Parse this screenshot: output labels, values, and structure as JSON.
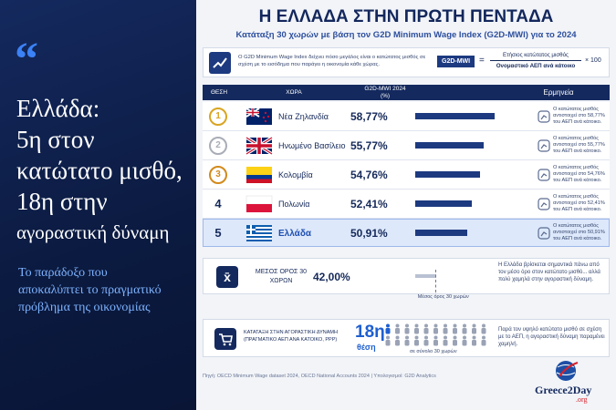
{
  "left": {
    "quote_mark": "“",
    "title_lines": [
      "Ελλάδα:",
      "5η στον",
      "κατώτατο μισθό,",
      "18η στην",
      "αγοραστική δύναμη"
    ],
    "subtitle_lines": [
      "Το παράδοξο που",
      "αποκαλύπτει το πραγματικό",
      "πρόβλημα της οικονομίας"
    ]
  },
  "header": {
    "title": "Η ΕΛΛΑΔΑ ΣΤΗΝ ΠΡΩΤΗ ΠΕΝΤΑΔΑ",
    "subtitle": "Κατάταξη 30 χωρών με βάση τον G2D Minimum Wage Index (G2D-MWI) για το 2024"
  },
  "info": {
    "text": "Ο G2D Minimum Wage Index δείχνει πόσο μεγάλος είναι ο κατώτατος μισθός σε σχέση με το εισόδημα που παράγει η οικονομία κάθε χώρας.",
    "formula_label": "G2D-MWI",
    "equals": "=",
    "numerator": "Ετήσιος κατώτατος μισθός",
    "denominator": "Ονομαστικό ΑΕΠ ανά κάτοικο",
    "multiplier": "× 100"
  },
  "chart_data": {
    "type": "bar",
    "orientation": "horizontal",
    "column_headers": {
      "rank": "ΘΕΣΗ",
      "country": "ΧΩΡΑ",
      "value": "G2D-MWI 2024",
      "value_unit": "(%)",
      "notes": "Ερμηνεία"
    },
    "ranks": [
      1,
      2,
      3,
      4,
      5
    ],
    "categories": [
      "Νέα Ζηλανδία",
      "Ηνωμένο Βασίλειο",
      "Κολομβία",
      "Πολωνία",
      "Ελλάδα"
    ],
    "values": [
      58.77,
      55.77,
      54.76,
      52.41,
      50.91
    ],
    "value_labels": [
      "58,77%",
      "55,77%",
      "54,76%",
      "52,41%",
      "50,91%"
    ],
    "notes": [
      "Ο κατώτατος μισθός αντιστοιχεί στο 58,77% του ΑΕΠ ανά κάτοικο.",
      "Ο κατώτατος μισθός αντιστοιχεί στο 55,77% του ΑΕΠ ανά κάτοικο.",
      "Ο κατώτατος μισθός αντιστοιχεί στο 54,76% του ΑΕΠ ανά κάτοικο.",
      "Ο κατώτατος μισθός αντιστοιχεί στο 52,41% του ΑΕΠ ανά κάτοικο.",
      "Ο κατώτατος μισθός αντιστοιχεί στο 50,91% του ΑΕΠ ανά κάτοικο."
    ],
    "xlim": [
      36,
      61
    ],
    "color": "#1d3a80",
    "average": {
      "label": "ΜΕΣΟΣ ΟΡΟΣ 30 ΧΩΡΩΝ",
      "value": 42.0,
      "value_label": "42,00%",
      "marker_label": "Μέσος όρος 30 χωρών",
      "note": "Η Ελλάδα βρίσκεται σημαντικά πάνω από τον μέσο όρο στον κατώτατο μισθό... αλλά πολύ χαμηλά στην αγοραστική δύναμη."
    }
  },
  "purchasing_power": {
    "label": "ΚΑΤΑΤΑΞΗ ΣΤΗΝ ΑΓΟΡΑΣΤΙΚΗ ΔΥΝΑΜΗ (ΠΡΑΓΜΑΤΙΚΟ ΑΕΠ ΑΝΑ ΚΑΤΟΙΚΟ, PPP)",
    "rank_label": "18η",
    "rank_word": "θέση",
    "total_label": "σε σύνολο 30 χωρών",
    "note": "Παρά τον υψηλό κατώτατο μισθό σε σχέση με το ΑΕΠ, η αγοραστική δύναμη παραμένει χαμηλή."
  },
  "footer": {
    "source": "Πηγή: OECD Minimum Wage dataset 2024, OECD National Accounts 2024  |  Υπολογισμοί: G2D Analytics",
    "logo": "Greece2Day",
    "logo_suffix": ".org"
  }
}
